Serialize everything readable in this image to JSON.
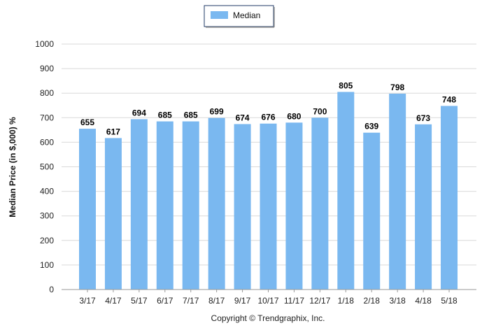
{
  "chart_data": {
    "type": "bar",
    "categories": [
      "3/17",
      "4/17",
      "5/17",
      "6/17",
      "7/17",
      "8/17",
      "9/17",
      "10/17",
      "11/17",
      "12/17",
      "1/18",
      "2/18",
      "3/18",
      "4/18",
      "5/18"
    ],
    "series": [
      {
        "name": "Median",
        "values": [
          655,
          617,
          694,
          685,
          685,
          699,
          674,
          676,
          680,
          700,
          805,
          639,
          798,
          673,
          748
        ]
      }
    ],
    "ylabel": "Median Price (in $,000) %",
    "xlabel": "",
    "ylim": [
      0,
      1000
    ],
    "yticks": [
      0,
      100,
      200,
      300,
      400,
      500,
      600,
      700,
      800,
      900,
      1000
    ],
    "grid": true,
    "legend_position": "top-center",
    "data_labels": true,
    "bar_color": "#7ab8f0"
  },
  "footer": {
    "copyright": "Copyright © Trendgraphix, Inc."
  }
}
